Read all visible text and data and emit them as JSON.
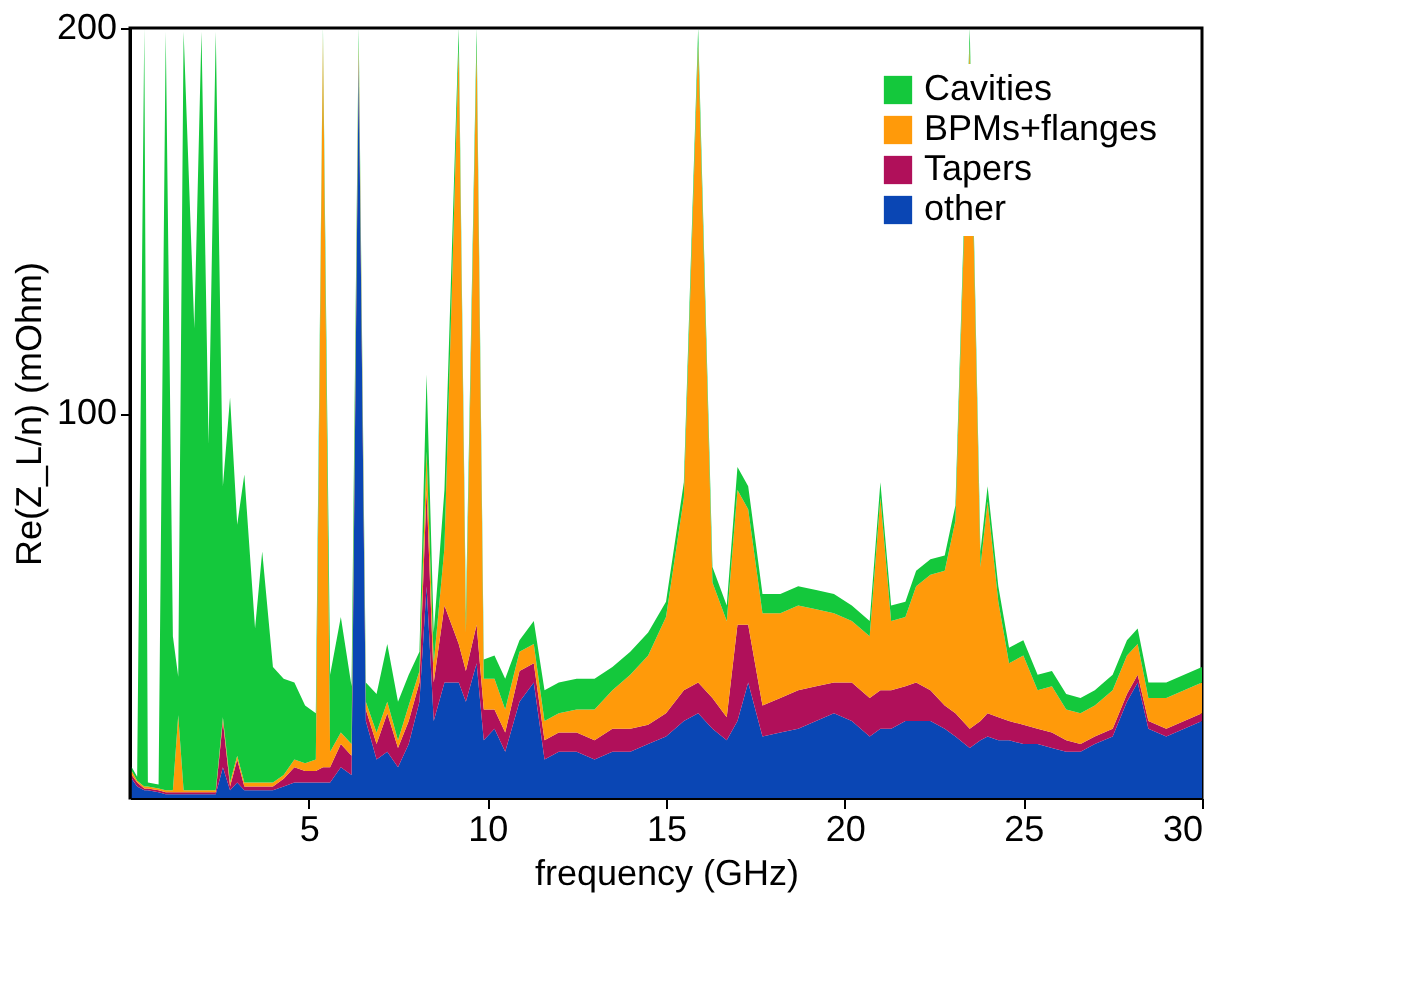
{
  "chart_data": {
    "type": "area",
    "stacked": true,
    "xlabel": "frequency (GHz)",
    "ylabel": "Re(Z_L/n) (mOhm)",
    "xlim": [
      0,
      30
    ],
    "xticks": [
      5,
      10,
      15,
      20,
      25,
      30
    ],
    "ylim": [
      0,
      200
    ],
    "yticks": [
      100,
      200
    ],
    "grid": false,
    "legend": "top right",
    "x": [
      0.05,
      0.2,
      0.4,
      0.5,
      0.8,
      1.0,
      1.2,
      1.35,
      1.5,
      1.8,
      2.0,
      2.2,
      2.4,
      2.6,
      2.8,
      3.0,
      3.2,
      3.5,
      3.7,
      4.0,
      4.3,
      4.6,
      4.9,
      5.2,
      5.4,
      5.6,
      5.9,
      6.2,
      6.4,
      6.6,
      6.9,
      7.2,
      7.5,
      7.8,
      8.1,
      8.3,
      8.5,
      8.8,
      9.2,
      9.4,
      9.7,
      9.9,
      10.2,
      10.5,
      10.9,
      11.3,
      11.6,
      12.0,
      12.5,
      13.0,
      13.5,
      14.0,
      14.5,
      15.0,
      15.5,
      15.9,
      16.3,
      16.7,
      17.0,
      17.3,
      17.7,
      18.2,
      18.7,
      19.2,
      19.7,
      20.2,
      20.7,
      21.0,
      21.3,
      21.7,
      22.0,
      22.4,
      22.8,
      23.1,
      23.5,
      23.8,
      24.0,
      24.3,
      24.6,
      25.0,
      25.4,
      25.8,
      26.2,
      26.6,
      27.0,
      27.5,
      27.9,
      28.2,
      28.5,
      29.0,
      29.5,
      30.0
    ],
    "series": [
      {
        "name": "other",
        "color": "#0a46b4",
        "values": [
          5,
          3,
          2,
          2,
          1.5,
          1,
          1,
          1,
          1,
          1,
          1,
          1,
          1,
          8,
          2,
          4,
          2,
          2,
          2,
          2,
          3,
          4,
          4,
          4,
          4,
          4,
          8,
          6,
          190,
          20,
          10,
          12,
          8,
          14,
          25,
          55,
          20,
          30,
          30,
          25,
          35,
          15,
          18,
          12,
          25,
          30,
          10,
          12,
          12,
          10,
          12,
          12,
          14,
          16,
          20,
          22,
          18,
          15,
          20,
          30,
          16,
          17,
          18,
          20,
          22,
          20,
          16,
          18,
          18,
          20,
          20,
          20,
          18,
          16,
          13,
          15,
          16,
          15,
          15,
          14,
          14,
          13,
          12,
          12,
          14,
          16,
          25,
          30,
          18,
          16,
          18,
          20
        ]
      },
      {
        "name": "Tapers",
        "color": "#b0105a",
        "values": [
          1,
          1,
          0.5,
          0.5,
          0.5,
          0.5,
          0.5,
          0.5,
          0.5,
          0.5,
          0.5,
          0.5,
          0.5,
          12,
          1,
          6,
          1,
          1,
          1,
          1,
          2,
          4,
          3,
          3,
          4,
          4,
          6,
          5,
          3,
          3,
          4,
          10,
          5,
          6,
          5,
          25,
          10,
          20,
          10,
          8,
          10,
          8,
          5,
          5,
          8,
          5,
          5,
          5,
          5,
          5,
          6,
          6,
          5,
          6,
          8,
          8,
          8,
          6,
          25,
          15,
          8,
          9,
          10,
          9,
          8,
          10,
          10,
          10,
          10,
          9,
          10,
          8,
          6,
          6,
          5,
          5,
          6,
          6,
          5,
          5,
          4,
          4,
          3,
          2,
          2,
          2,
          2,
          2,
          2,
          2,
          2,
          2
        ]
      },
      {
        "name": "BPMs+flanges",
        "color": "#ff9a0a",
        "values": [
          1,
          0.5,
          0.5,
          0.5,
          0.5,
          0.5,
          0.5,
          20,
          0.5,
          0.5,
          0.5,
          0.5,
          0.5,
          1,
          1,
          1,
          1,
          1,
          1,
          1,
          1,
          2,
          2,
          3,
          190,
          4,
          3,
          3,
          3,
          2,
          3,
          3,
          2,
          4,
          3,
          10,
          5,
          15,
          155,
          10,
          150,
          8,
          8,
          6,
          5,
          5,
          5,
          5,
          6,
          8,
          10,
          14,
          18,
          25,
          50,
          166,
          30,
          25,
          35,
          30,
          24,
          22,
          22,
          20,
          18,
          16,
          16,
          50,
          18,
          18,
          25,
          30,
          35,
          50,
          178,
          40,
          55,
          30,
          15,
          18,
          10,
          12,
          8,
          8,
          8,
          10,
          10,
          8,
          6,
          8,
          8,
          8
        ]
      },
      {
        "name": "Cavities",
        "color": "#14c83c",
        "values": [
          1,
          1,
          197,
          1,
          1,
          197,
          40,
          10,
          197,
          120,
          197,
          90,
          197,
          60,
          100,
          60,
          80,
          40,
          60,
          30,
          25,
          20,
          15,
          12,
          2,
          20,
          30,
          15,
          4,
          5,
          10,
          15,
          10,
          8,
          5,
          20,
          8,
          15,
          5,
          5,
          5,
          5,
          6,
          8,
          3,
          6,
          8,
          8,
          8,
          8,
          6,
          6,
          6,
          4,
          4,
          4,
          4,
          4,
          6,
          6,
          5,
          5,
          5,
          5,
          5,
          4,
          4,
          4,
          4,
          4,
          4,
          4,
          4,
          4,
          4,
          4,
          4,
          4,
          4,
          4,
          4,
          4,
          4,
          4,
          4,
          4,
          4,
          4,
          4,
          4,
          4,
          4
        ]
      }
    ]
  }
}
